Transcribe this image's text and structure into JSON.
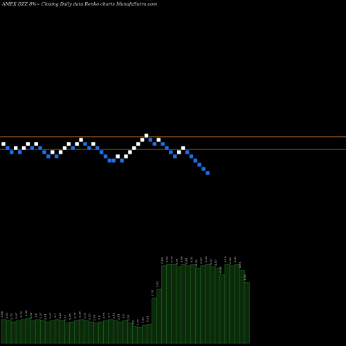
{
  "header": {
    "title": "AMEX  DZZ 8%~  Closing Daily data  Renko  charts MunafaSutra.com"
  },
  "colors": {
    "background": "#000000",
    "up_brick": "#ffffff",
    "down_brick": "#1f6fe8",
    "resistance_line": "#b5651d",
    "volume_fill": "#0a2a0a",
    "volume_edge": "#2e7d32",
    "label_text": "#d8d8d8"
  },
  "chart_data": [
    {
      "type": "renko",
      "title": "AMEX  DZZ 8%~  Closing Daily data  Renko  charts MunafaSutra.com",
      "bricks": [
        {
          "level": 9,
          "dir": "up"
        },
        {
          "level": 8,
          "dir": "down"
        },
        {
          "level": 7,
          "dir": "down"
        },
        {
          "level": 8,
          "dir": "up"
        },
        {
          "level": 7,
          "dir": "down"
        },
        {
          "level": 8,
          "dir": "up"
        },
        {
          "level": 9,
          "dir": "up"
        },
        {
          "level": 8,
          "dir": "down"
        },
        {
          "level": 9,
          "dir": "up"
        },
        {
          "level": 8,
          "dir": "down"
        },
        {
          "level": 7,
          "dir": "down"
        },
        {
          "level": 6,
          "dir": "down"
        },
        {
          "level": 7,
          "dir": "up"
        },
        {
          "level": 6,
          "dir": "down"
        },
        {
          "level": 7,
          "dir": "up"
        },
        {
          "level": 8,
          "dir": "up"
        },
        {
          "level": 9,
          "dir": "up"
        },
        {
          "level": 8,
          "dir": "down"
        },
        {
          "level": 9,
          "dir": "up"
        },
        {
          "level": 10,
          "dir": "up"
        },
        {
          "level": 9,
          "dir": "down"
        },
        {
          "level": 8,
          "dir": "down"
        },
        {
          "level": 9,
          "dir": "up"
        },
        {
          "level": 8,
          "dir": "down"
        },
        {
          "level": 7,
          "dir": "down"
        },
        {
          "level": 6,
          "dir": "down"
        },
        {
          "level": 5,
          "dir": "down"
        },
        {
          "level": 5,
          "dir": "down"
        },
        {
          "level": 6,
          "dir": "up"
        },
        {
          "level": 5,
          "dir": "down"
        },
        {
          "level": 6,
          "dir": "up"
        },
        {
          "level": 7,
          "dir": "up"
        },
        {
          "level": 8,
          "dir": "up"
        },
        {
          "level": 9,
          "dir": "up"
        },
        {
          "level": 10,
          "dir": "up"
        },
        {
          "level": 11,
          "dir": "up"
        },
        {
          "level": 10,
          "dir": "down"
        },
        {
          "level": 9,
          "dir": "down"
        },
        {
          "level": 10,
          "dir": "up"
        },
        {
          "level": 9,
          "dir": "down"
        },
        {
          "level": 8,
          "dir": "down"
        },
        {
          "level": 7,
          "dir": "down"
        },
        {
          "level": 6,
          "dir": "down"
        },
        {
          "level": 7,
          "dir": "up"
        },
        {
          "level": 8,
          "dir": "up"
        },
        {
          "level": 7,
          "dir": "down"
        },
        {
          "level": 6,
          "dir": "down"
        },
        {
          "level": 5,
          "dir": "down"
        },
        {
          "level": 4,
          "dir": "down"
        },
        {
          "level": 3,
          "dir": "down"
        },
        {
          "level": 2,
          "dir": "down"
        }
      ],
      "resistance_levels": [
        11.2,
        8.2
      ]
    },
    {
      "type": "bar",
      "values": [
        2.1,
        2.0,
        1.9,
        2.0,
        2.1,
        2.2,
        2.0,
        2.1,
        2.0,
        1.9,
        2.0,
        2.1,
        2.0,
        1.8,
        1.9,
        2.0,
        2.1,
        2.0,
        1.9,
        1.8,
        1.9,
        2.0,
        2.1,
        2.0,
        1.9,
        2.0,
        1.8,
        1.5,
        1.4,
        1.6,
        1.7,
        4.0,
        4.8,
        6.9,
        7.0,
        7.0,
        6.8,
        7.0,
        6.9,
        7.0,
        6.7,
        6.9,
        7.0,
        6.8,
        6.7,
        6.1,
        7.0,
        6.9,
        7.0,
        6.5,
        5.4
      ],
      "labels": [
        "2.84",
        "2.63",
        "2.75",
        "2.67",
        "2.72",
        "2.54",
        "2.58",
        "2.6",
        "2.37",
        "2.51",
        "2.67",
        "2.7",
        "2.41",
        "2.37",
        "2.45",
        "2.76",
        "2.36",
        "2.52",
        "2.53",
        "2.56",
        "2.6",
        "2.79",
        "2.7",
        "2.48",
        "2.61",
        "2.6",
        "2.36",
        "2.6",
        "1.75",
        "1.82",
        "1.81",
        "2.78",
        "3.62",
        "6.69",
        "6.62",
        "6.70",
        "6.62",
        "6.66",
        "6.61",
        "6.51",
        "6.53",
        "6.57",
        "6.53",
        "6.57",
        "4.87",
        "6.30",
        "6.18",
        "6.43",
        "6.61",
        "4.91",
        "4.82"
      ],
      "ylim": [
        0,
        8
      ]
    }
  ]
}
